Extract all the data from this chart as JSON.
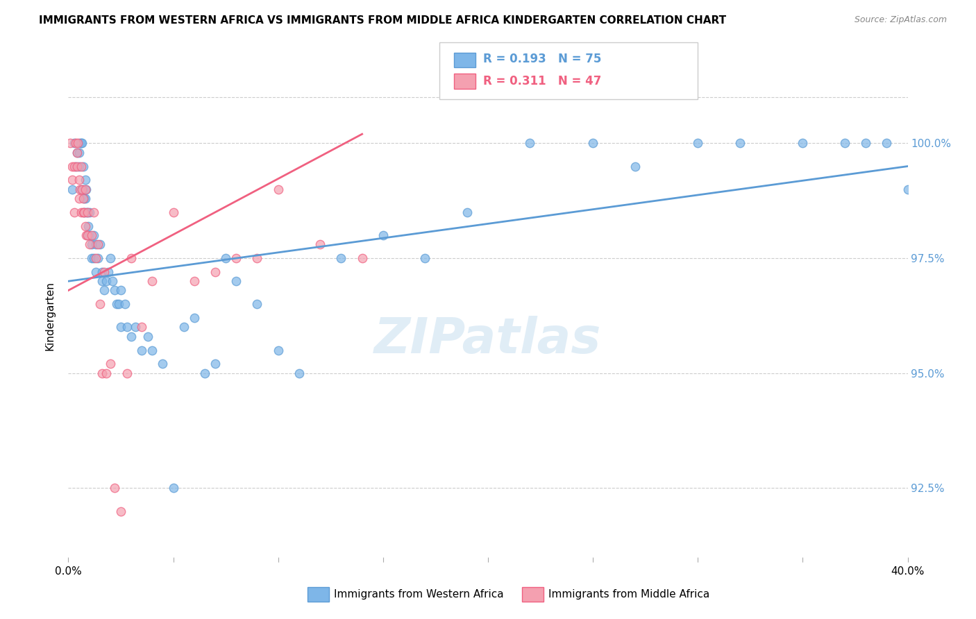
{
  "title": "IMMIGRANTS FROM WESTERN AFRICA VS IMMIGRANTS FROM MIDDLE AFRICA KINDERGARTEN CORRELATION CHART",
  "source": "Source: ZipAtlas.com",
  "ylabel": "Kindergarten",
  "ytick_values": [
    100.0,
    97.5,
    95.0,
    92.5
  ],
  "xlim": [
    0.0,
    40.0
  ],
  "ylim": [
    91.0,
    101.5
  ],
  "legend_blue_R": "0.193",
  "legend_blue_N": "75",
  "legend_pink_R": "0.311",
  "legend_pink_N": "47",
  "legend_blue_label": "Immigrants from Western Africa",
  "legend_pink_label": "Immigrants from Middle Africa",
  "blue_color": "#7EB6E8",
  "pink_color": "#F4A0B0",
  "blue_line_color": "#5B9BD5",
  "pink_line_color": "#F06080",
  "watermark": "ZIPatlas",
  "blue_scatter_x": [
    0.2,
    0.3,
    0.35,
    0.4,
    0.5,
    0.5,
    0.55,
    0.6,
    0.6,
    0.65,
    0.7,
    0.7,
    0.75,
    0.75,
    0.8,
    0.8,
    0.85,
    0.85,
    0.9,
    0.9,
    0.95,
    1.0,
    1.0,
    1.1,
    1.1,
    1.2,
    1.2,
    1.3,
    1.3,
    1.4,
    1.5,
    1.6,
    1.6,
    1.7,
    1.8,
    1.9,
    2.0,
    2.1,
    2.2,
    2.3,
    2.4,
    2.5,
    2.5,
    2.7,
    2.8,
    3.0,
    3.2,
    3.5,
    3.8,
    4.0,
    4.5,
    5.0,
    5.5,
    6.0,
    6.5,
    7.0,
    7.5,
    8.0,
    9.0,
    10.0,
    11.0,
    13.0,
    15.0,
    17.0,
    19.0,
    22.0,
    25.0,
    27.0,
    30.0,
    32.0,
    35.0,
    37.0,
    38.0,
    39.0,
    40.0
  ],
  "blue_scatter_y": [
    99.0,
    100.0,
    99.5,
    99.8,
    99.8,
    99.5,
    100.0,
    100.0,
    99.0,
    100.0,
    99.5,
    99.0,
    98.5,
    98.8,
    99.2,
    98.8,
    99.0,
    98.5,
    98.5,
    98.0,
    98.2,
    98.5,
    98.0,
    97.8,
    97.5,
    98.0,
    97.5,
    97.8,
    97.2,
    97.5,
    97.8,
    97.2,
    97.0,
    96.8,
    97.0,
    97.2,
    97.5,
    97.0,
    96.8,
    96.5,
    96.5,
    96.8,
    96.0,
    96.5,
    96.0,
    95.8,
    96.0,
    95.5,
    95.8,
    95.5,
    95.2,
    92.5,
    96.0,
    96.2,
    95.0,
    95.2,
    97.5,
    97.0,
    96.5,
    95.5,
    95.0,
    97.5,
    98.0,
    97.5,
    98.5,
    100.0,
    100.0,
    99.5,
    100.0,
    100.0,
    100.0,
    100.0,
    100.0,
    100.0,
    99.0
  ],
  "pink_scatter_x": [
    0.1,
    0.2,
    0.2,
    0.3,
    0.3,
    0.35,
    0.4,
    0.4,
    0.45,
    0.5,
    0.5,
    0.55,
    0.6,
    0.6,
    0.65,
    0.7,
    0.7,
    0.75,
    0.8,
    0.8,
    0.85,
    0.9,
    0.9,
    1.0,
    1.1,
    1.2,
    1.3,
    1.4,
    1.5,
    1.6,
    1.7,
    1.8,
    2.0,
    2.2,
    2.5,
    2.8,
    3.0,
    3.5,
    4.0,
    5.0,
    6.0,
    7.0,
    8.0,
    9.0,
    10.0,
    12.0,
    14.0
  ],
  "pink_scatter_y": [
    100.0,
    99.5,
    99.2,
    99.5,
    98.5,
    100.0,
    99.8,
    99.5,
    100.0,
    99.2,
    98.8,
    99.0,
    99.5,
    98.5,
    99.0,
    98.8,
    98.5,
    98.5,
    99.0,
    98.2,
    98.0,
    98.5,
    98.0,
    97.8,
    98.0,
    98.5,
    97.5,
    97.8,
    96.5,
    95.0,
    97.2,
    95.0,
    95.2,
    92.5,
    92.0,
    95.0,
    97.5,
    96.0,
    97.0,
    98.5,
    97.0,
    97.2,
    97.5,
    97.5,
    99.0,
    97.8,
    97.5
  ],
  "blue_trendline_x": [
    0.0,
    40.0
  ],
  "blue_trendline_y": [
    97.0,
    99.5
  ],
  "pink_trendline_x": [
    0.0,
    14.0
  ],
  "pink_trendline_y": [
    96.8,
    100.2
  ],
  "xtick_vals": [
    0,
    5,
    10,
    15,
    20,
    25,
    30,
    35,
    40
  ]
}
